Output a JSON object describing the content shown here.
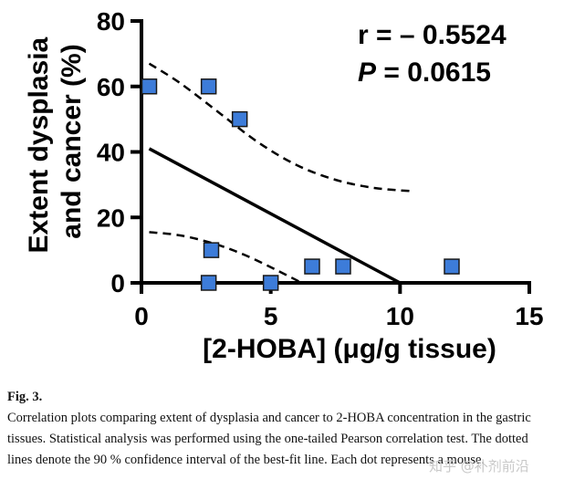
{
  "chart_data": {
    "type": "scatter",
    "xlabel": "[2-HOBA] (μg/g tissue)",
    "ylabel_lines": [
      "Extent dysplasia",
      "and cancer (%)"
    ],
    "xlim": [
      0,
      15
    ],
    "ylim": [
      0,
      80
    ],
    "xticks": [
      "0",
      "5",
      "10",
      "15"
    ],
    "yticks": [
      "0",
      "20",
      "40",
      "60",
      "80"
    ],
    "points": [
      {
        "x": 0.3,
        "y": 60
      },
      {
        "x": 2.6,
        "y": 60
      },
      {
        "x": 3.8,
        "y": 50
      },
      {
        "x": 2.7,
        "y": 10
      },
      {
        "x": 2.6,
        "y": 0
      },
      {
        "x": 5.0,
        "y": 0
      },
      {
        "x": 6.6,
        "y": 5
      },
      {
        "x": 7.8,
        "y": 5
      },
      {
        "x": 12.0,
        "y": 5
      }
    ],
    "fit_line": [
      [
        0.3,
        41
      ],
      [
        10.0,
        0
      ]
    ],
    "ci_upper": [
      [
        0.3,
        67
      ],
      [
        1.5,
        61
      ],
      [
        3,
        52
      ],
      [
        4.5,
        43
      ],
      [
        6,
        36
      ],
      [
        7.5,
        31.5
      ],
      [
        9,
        29
      ],
      [
        10.5,
        28
      ]
    ],
    "ci_lower": [
      [
        0.3,
        15.5
      ],
      [
        1.5,
        14.5
      ],
      [
        2.8,
        12
      ],
      [
        4,
        8.5
      ],
      [
        5.2,
        4
      ],
      [
        6.2,
        0
      ]
    ],
    "marker_color": "#3d7cd9",
    "marker_edge": "#1a1a1a"
  },
  "annotations": {
    "r_text": "r = – 0.5524",
    "p_letter": "P",
    "p_rest": " = 0.0615"
  },
  "caption": {
    "label": "Fig. 3.",
    "text": "Correlation plots comparing extent of dysplasia and cancer to 2-HOBA concentration in the gastric tissues. Statistical analysis was performed using the one-tailed Pearson correlation test. The dotted lines denote the 90 % confidence interval of the best-fit line. Each dot represents a mouse."
  },
  "watermark": "知乎 @补剂前沿"
}
